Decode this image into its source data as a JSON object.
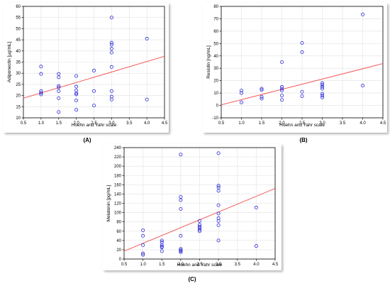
{
  "colors": {
    "point": "#2a2ad8",
    "line": "#f04848",
    "grid": "#e2e2e2",
    "axis": "#000000"
  },
  "chart_data": [
    {
      "id": "A",
      "panel_label": "(A)",
      "type": "scatter",
      "xlabel": "Hoehn and Yahr scale",
      "ylabel": "Adiponectin [µg/mL]",
      "xlim": [
        0.5,
        4.5
      ],
      "ylim": [
        10,
        60
      ],
      "xticks": [
        "0.5",
        "1.0",
        "1.5",
        "2.0",
        "2.5",
        "3.0",
        "3.5",
        "4.0",
        "4.5"
      ],
      "yticks": [
        "10",
        "15",
        "20",
        "25",
        "30",
        "35",
        "40",
        "45",
        "50",
        "55",
        "60"
      ],
      "grid": true,
      "trendline": [
        [
          0.5,
          18.8
        ],
        [
          4.5,
          37.6
        ]
      ],
      "points": [
        [
          1.0,
          33.0
        ],
        [
          1.0,
          29.7
        ],
        [
          1.0,
          22.0
        ],
        [
          1.0,
          21.2
        ],
        [
          1.0,
          20.5
        ],
        [
          1.5,
          29.7
        ],
        [
          1.5,
          28.2
        ],
        [
          1.5,
          24.3
        ],
        [
          1.5,
          23.7
        ],
        [
          1.5,
          22.0
        ],
        [
          1.5,
          18.8
        ],
        [
          1.5,
          12.6
        ],
        [
          2.0,
          28.8
        ],
        [
          2.0,
          24.0
        ],
        [
          2.0,
          22.3
        ],
        [
          2.0,
          21.0
        ],
        [
          2.0,
          20.5
        ],
        [
          2.0,
          17.8
        ],
        [
          2.0,
          13.6
        ],
        [
          2.5,
          31.2
        ],
        [
          2.5,
          22.0
        ],
        [
          2.5,
          15.5
        ],
        [
          3.0,
          55.0
        ],
        [
          3.0,
          43.7
        ],
        [
          3.0,
          42.8
        ],
        [
          3.0,
          41.0
        ],
        [
          3.0,
          39.3
        ],
        [
          3.0,
          32.8
        ],
        [
          3.0,
          22.0
        ],
        [
          3.0,
          19.5
        ],
        [
          3.0,
          18.2
        ],
        [
          4.0,
          45.5
        ],
        [
          4.0,
          18.2
        ]
      ]
    },
    {
      "id": "B",
      "panel_label": "(B)",
      "type": "scatter",
      "xlabel": "Hoehn and Yahr scale",
      "ylabel": "Resistin [ng/mL]",
      "xlim": [
        0.5,
        4.5
      ],
      "ylim": [
        -10,
        80
      ],
      "xticks": [
        "0.5",
        "1.0",
        "1.5",
        "2.0",
        "2.5",
        "3.0",
        "3.5",
        "4.0",
        "4.5"
      ],
      "yticks": [
        "-10",
        "0",
        "10",
        "20",
        "30",
        "40",
        "50",
        "60",
        "70",
        "80"
      ],
      "grid": true,
      "trendline": [
        [
          0.5,
          0.5
        ],
        [
          4.5,
          33.8
        ]
      ],
      "points": [
        [
          1.0,
          12.0
        ],
        [
          1.0,
          10.0
        ],
        [
          1.0,
          2.5
        ],
        [
          1.5,
          13.5
        ],
        [
          1.5,
          12.5
        ],
        [
          1.5,
          7.0
        ],
        [
          1.5,
          5.5
        ],
        [
          2.0,
          35.0
        ],
        [
          2.0,
          15.0
        ],
        [
          2.0,
          13.5
        ],
        [
          2.0,
          12.0
        ],
        [
          2.0,
          8.0
        ],
        [
          2.0,
          4.5
        ],
        [
          2.5,
          50.5
        ],
        [
          2.5,
          43.0
        ],
        [
          2.5,
          11.0
        ],
        [
          2.5,
          7.5
        ],
        [
          3.0,
          18.0
        ],
        [
          3.0,
          16.5
        ],
        [
          3.0,
          15.0
        ],
        [
          3.0,
          13.5
        ],
        [
          3.0,
          9.5
        ],
        [
          3.0,
          8.0
        ],
        [
          3.0,
          6.5
        ],
        [
          4.0,
          73.5
        ],
        [
          4.0,
          16.0
        ]
      ]
    },
    {
      "id": "C",
      "panel_label": "(C)",
      "type": "scatter",
      "xlabel": "Hoehn and Yahr scale",
      "ylabel": "Melatonin [pg/mL]",
      "xlim": [
        0.5,
        4.5
      ],
      "ylim": [
        0,
        240
      ],
      "xticks": [
        "0.5",
        "1.0",
        "1.5",
        "2.0",
        "2.5",
        "3.0",
        "3.5",
        "4.0",
        "4.5"
      ],
      "yticks": [
        "0",
        "20",
        "40",
        "60",
        "80",
        "100",
        "120",
        "140",
        "160",
        "180",
        "200",
        "220",
        "240"
      ],
      "grid": true,
      "trendline": [
        [
          0.5,
          17.0
        ],
        [
          4.5,
          152.0
        ]
      ],
      "points": [
        [
          1.0,
          62.0
        ],
        [
          1.0,
          50.0
        ],
        [
          1.0,
          30.0
        ],
        [
          1.0,
          12.0
        ],
        [
          1.0,
          9.0
        ],
        [
          1.5,
          40.0
        ],
        [
          1.5,
          36.0
        ],
        [
          1.5,
          30.0
        ],
        [
          1.5,
          27.0
        ],
        [
          1.5,
          25.0
        ],
        [
          1.5,
          17.0
        ],
        [
          2.0,
          225.0
        ],
        [
          2.0,
          134.0
        ],
        [
          2.0,
          127.0
        ],
        [
          2.0,
          108.0
        ],
        [
          2.0,
          50.0
        ],
        [
          2.0,
          22.0
        ],
        [
          2.0,
          19.0
        ],
        [
          2.0,
          17.0
        ],
        [
          2.0,
          15.0
        ],
        [
          2.5,
          82.0
        ],
        [
          2.5,
          74.0
        ],
        [
          2.5,
          70.0
        ],
        [
          2.5,
          67.0
        ],
        [
          2.5,
          63.0
        ],
        [
          2.5,
          60.0
        ],
        [
          3.0,
          228.0
        ],
        [
          3.0,
          158.0
        ],
        [
          3.0,
          154.0
        ],
        [
          3.0,
          147.0
        ],
        [
          3.0,
          116.0
        ],
        [
          3.0,
          98.0
        ],
        [
          3.0,
          88.0
        ],
        [
          3.0,
          82.0
        ],
        [
          3.0,
          73.0
        ],
        [
          3.0,
          40.0
        ],
        [
          4.0,
          111.0
        ],
        [
          4.0,
          28.0
        ]
      ]
    }
  ]
}
